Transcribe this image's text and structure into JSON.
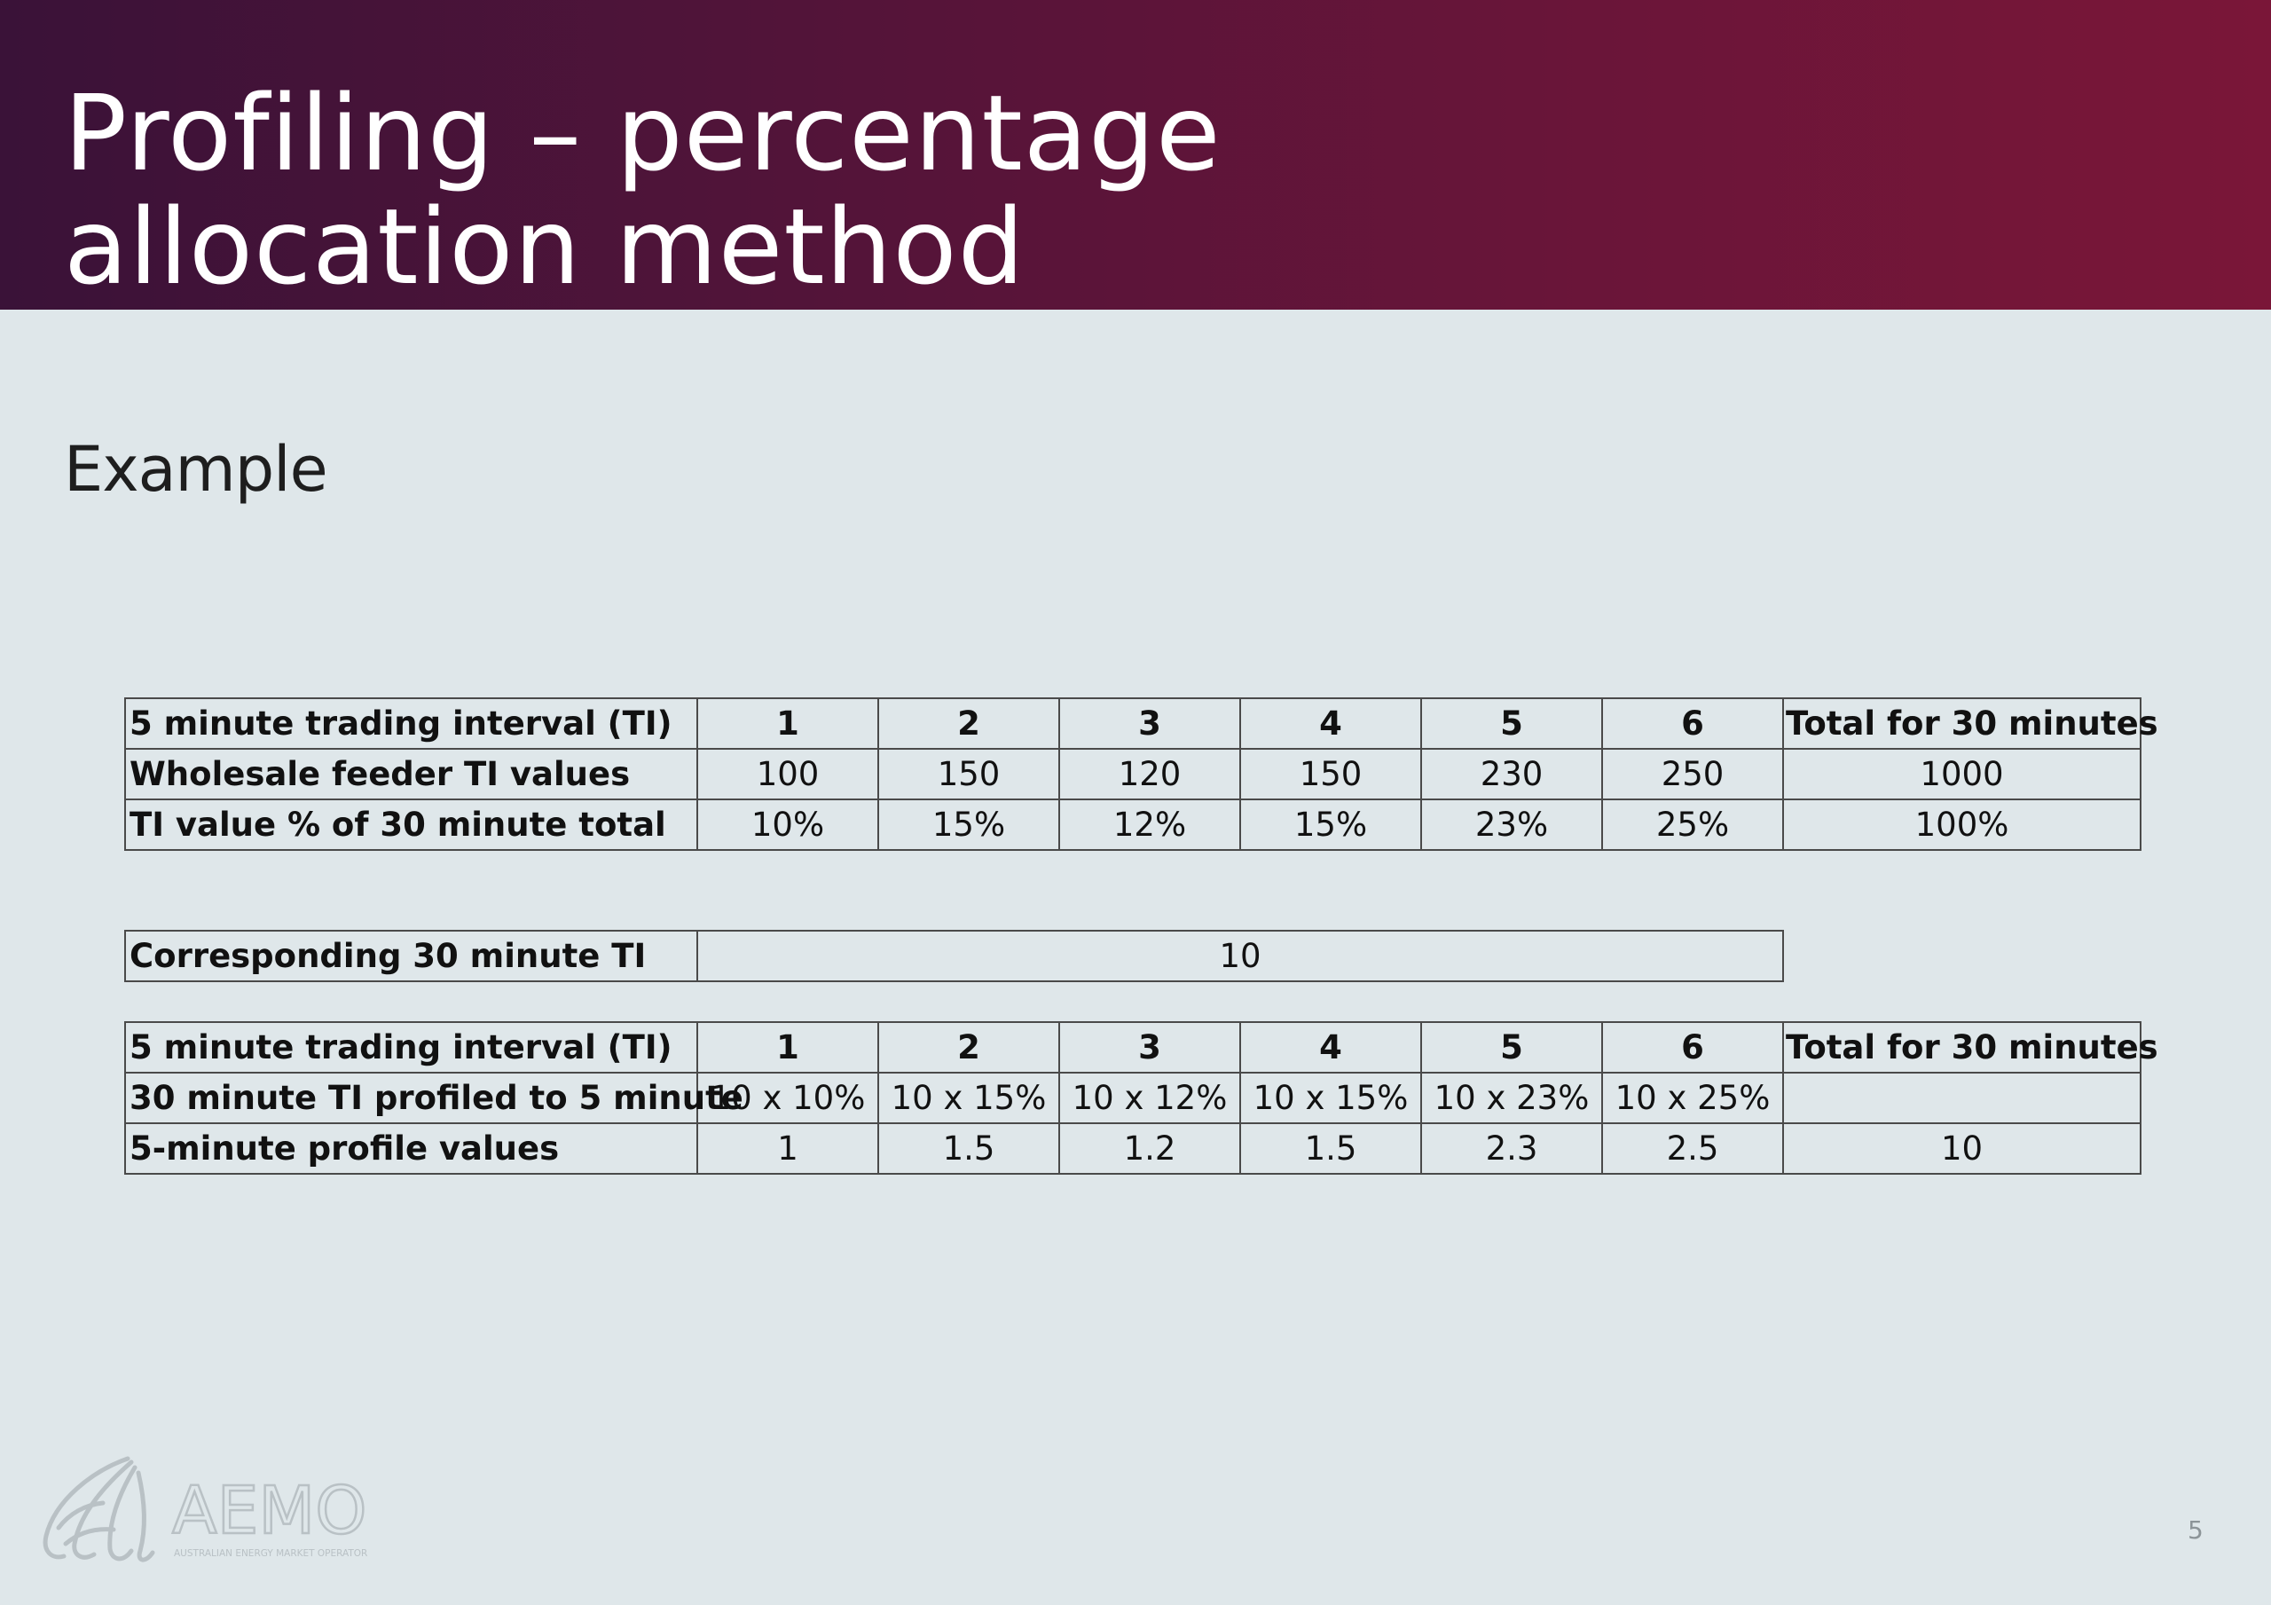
{
  "slide": {
    "title_line1": "Profiling – percentage",
    "title_line2": "allocation method",
    "subtitle": "Example",
    "page_number": "5"
  },
  "table_a": {
    "header": [
      "5 minute trading interval (TI)",
      "1",
      "2",
      "3",
      "4",
      "5",
      "6",
      "Total for 30 minutes"
    ],
    "rows": [
      [
        "Wholesale feeder TI values",
        "100",
        "150",
        "120",
        "150",
        "230",
        "250",
        "1000"
      ],
      [
        "TI value % of 30 minute total",
        "10%",
        "15%",
        "12%",
        "15%",
        "23%",
        "25%",
        "100%"
      ]
    ]
  },
  "table_b": {
    "label": "Corresponding 30 minute TI",
    "value": "10"
  },
  "table_c": {
    "header": [
      "5 minute trading interval (TI)",
      "1",
      "2",
      "3",
      "4",
      "5",
      "6",
      "Total for 30 minutes"
    ],
    "rows": [
      [
        "30 minute TI profiled to 5 minute",
        "10 x 10%",
        "10 x 15%",
        "10 x 12%",
        "10 x 15%",
        "10 x 23%",
        "10 x 25%",
        ""
      ],
      [
        "5-minute profile values",
        "1",
        "1.5",
        "1.2",
        "1.5",
        "2.3",
        "2.5",
        "10"
      ]
    ]
  },
  "logo": {
    "icon": "aemo-swirl-logo-icon",
    "wordmark": "AEMO",
    "tagline": "AUSTRALIAN ENERGY MARKET OPERATOR"
  },
  "colors": {
    "header_left": "#3a1238",
    "header_right": "#7a1638",
    "background": "#dfe7ea",
    "border": "#4a4a4a"
  }
}
